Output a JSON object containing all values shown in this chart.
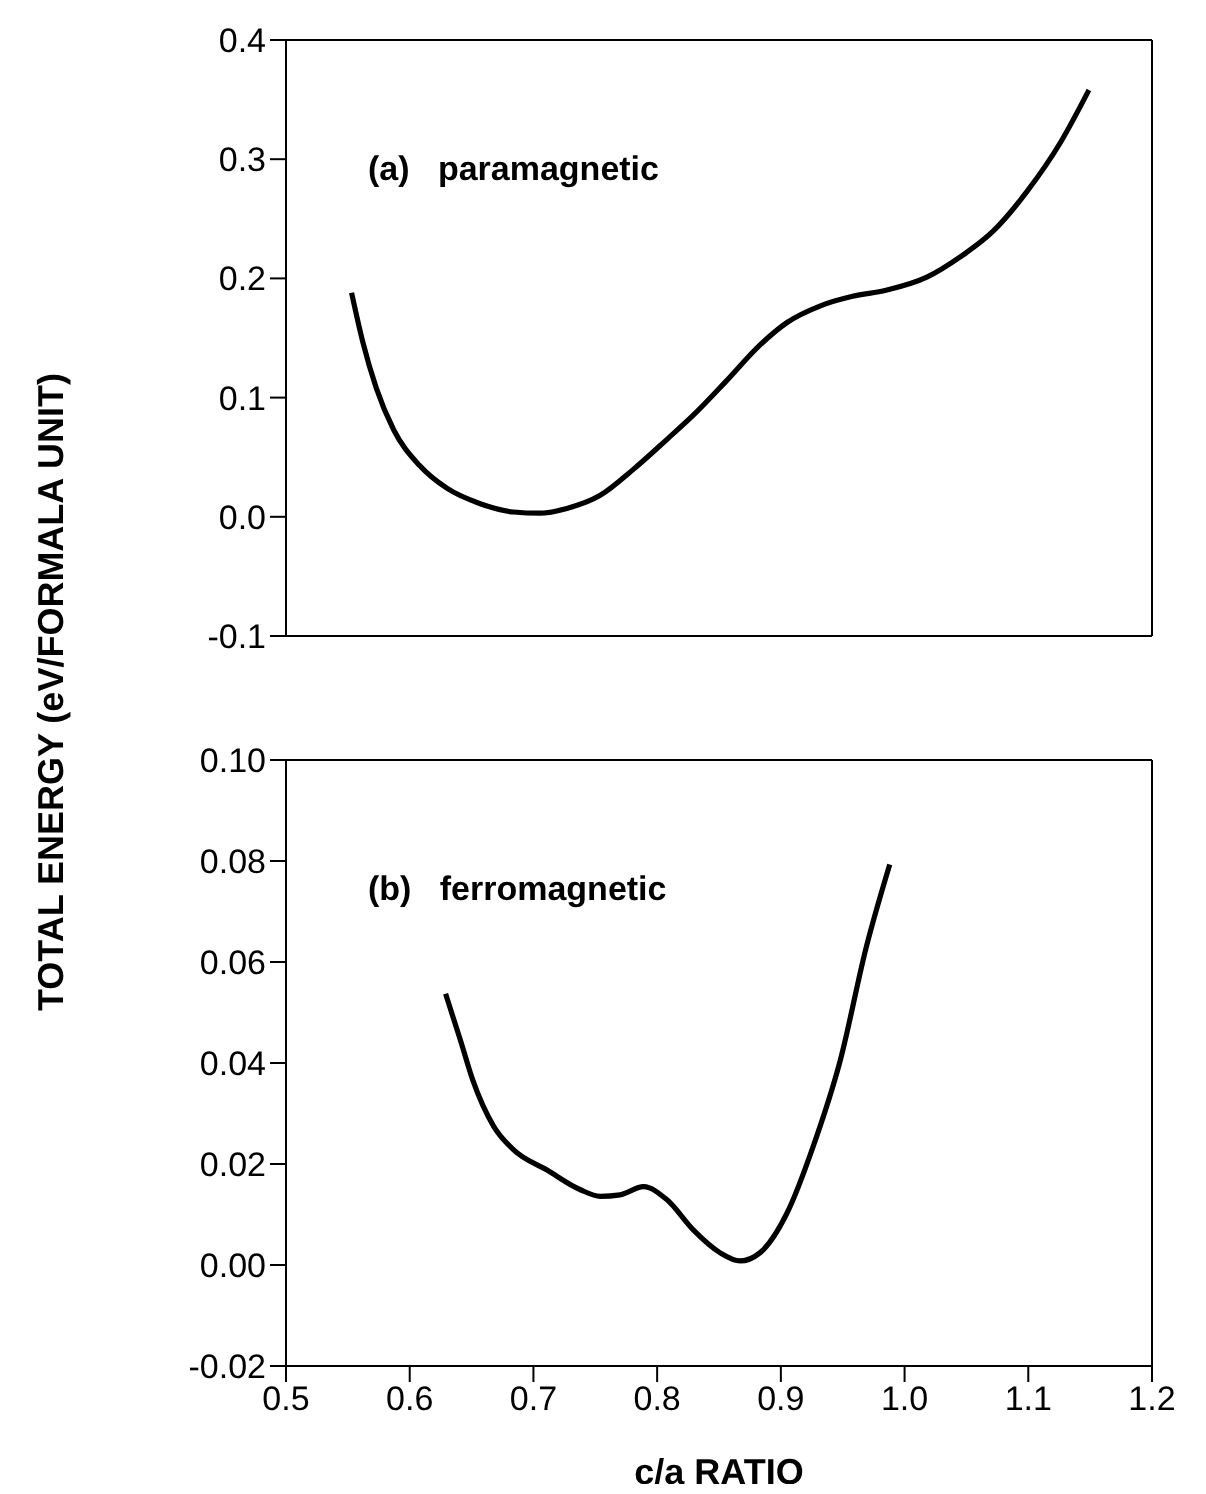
{
  "chart_data": [
    {
      "type": "line",
      "ylabel": "TOTAL ENERGY (eV/FORMALA UNIT)",
      "annotations": [
        "(a)   paramagnetic"
      ],
      "tick_labels": "y",
      "xlim": [
        0.5,
        1.2
      ],
      "xticks": [
        0.5,
        0.6,
        0.7,
        0.8,
        0.9,
        1.0,
        1.1,
        1.2
      ],
      "ylim": [
        -0.1,
        0.4
      ],
      "yticks": [
        -0.1,
        {
          "value": 0.0,
          "label": "0.0"
        },
        0.1,
        0.2,
        0.3,
        0.4
      ],
      "series": [
        {
          "color": "#000000",
          "x": [
            0.553,
            0.562,
            0.573,
            0.587,
            0.608,
            0.63,
            0.657,
            0.684,
            0.705,
            0.727,
            0.754,
            0.781,
            0.808,
            0.829,
            0.856,
            0.883,
            0.905,
            0.932,
            0.958,
            0.985,
            1.018,
            1.045,
            1.072,
            1.099,
            1.126,
            1.149
          ],
          "values": [
            0.188,
            0.147,
            0.108,
            0.073,
            0.043,
            0.024,
            0.011,
            0.004,
            0.003,
            0.007,
            0.018,
            0.04,
            0.065,
            0.085,
            0.114,
            0.144,
            0.163,
            0.177,
            0.185,
            0.19,
            0.201,
            0.218,
            0.24,
            0.273,
            0.314,
            0.358
          ]
        }
      ]
    },
    {
      "type": "line",
      "xlabel": "c/a   RATIO",
      "annotations": [
        "(b)   ferromagnetic"
      ],
      "xlim": [
        0.5,
        1.2
      ],
      "xticks": [
        0.5,
        0.6,
        0.7,
        0.8,
        0.9,
        {
          "value": 1.0,
          "label": "1.0"
        },
        1.1,
        1.2
      ],
      "ylim": [
        -0.02,
        0.1
      ],
      "yticks": [
        {
          "value": -0.02,
          "label": "-0.02"
        },
        {
          "value": 0.0,
          "label": "0.00"
        },
        {
          "value": 0.02,
          "label": "0.02"
        },
        {
          "value": 0.04,
          "label": "0.04"
        },
        {
          "value": 0.06,
          "label": "0.06"
        },
        {
          "value": 0.08,
          "label": "0.08"
        },
        {
          "value": 0.1,
          "label": "0.10"
        }
      ],
      "series": [
        {
          "color": "#000000",
          "x": [
            0.629,
            0.641,
            0.651,
            0.668,
            0.684,
            0.711,
            0.738,
            0.754,
            0.77,
            0.789,
            0.808,
            0.829,
            0.851,
            0.867,
            0.883,
            0.905,
            0.926,
            0.948,
            0.969,
            0.988
          ],
          "values": [
            0.0537,
            0.0445,
            0.0366,
            0.0274,
            0.0228,
            0.0188,
            0.0149,
            0.0136,
            0.0139,
            0.0155,
            0.0129,
            0.007,
            0.0024,
            0.0008,
            0.0024,
            0.0103,
            0.0234,
            0.0405,
            0.0629,
            0.0793
          ]
        }
      ]
    }
  ]
}
